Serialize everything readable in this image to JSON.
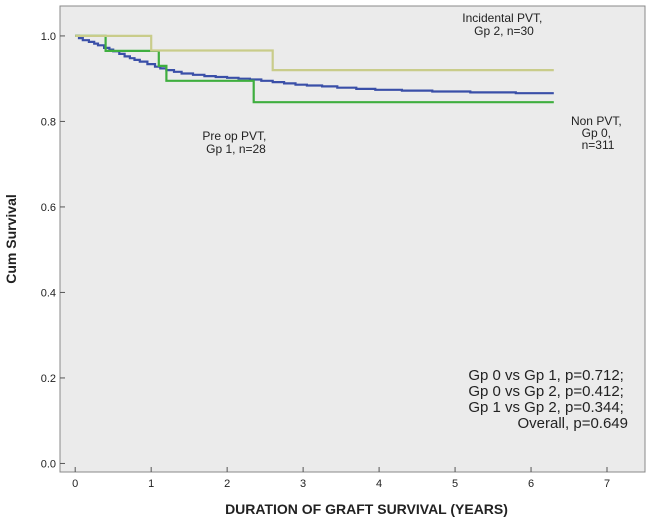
{
  "chart_data": {
    "type": "line",
    "title": "",
    "xlabel": "DURATION OF GRAFT SURVIVAL (YEARS)",
    "ylabel": "Cum Survival",
    "xlim": [
      -0.2,
      7.5
    ],
    "ylim": [
      -0.02,
      1.07
    ],
    "xticks": [
      0,
      1,
      2,
      3,
      4,
      5,
      6,
      7
    ],
    "yticks": [
      0.0,
      0.2,
      0.4,
      0.6,
      0.8,
      1.0
    ],
    "ytick_labels": [
      "0.0",
      "0.2",
      "0.4",
      "0.6",
      "0.8",
      "1.0"
    ],
    "grid": false,
    "series": [
      {
        "name": "Gp 0",
        "color": "#3a4fa8",
        "steps": [
          [
            0,
            1.0
          ],
          [
            0.05,
            0.995
          ],
          [
            0.1,
            0.99
          ],
          [
            0.18,
            0.986
          ],
          [
            0.25,
            0.982
          ],
          [
            0.3,
            0.978
          ],
          [
            0.38,
            0.972
          ],
          [
            0.45,
            0.968
          ],
          [
            0.5,
            0.964
          ],
          [
            0.58,
            0.958
          ],
          [
            0.65,
            0.952
          ],
          [
            0.72,
            0.948
          ],
          [
            0.78,
            0.944
          ],
          [
            0.85,
            0.94
          ],
          [
            0.95,
            0.934
          ],
          [
            1.05,
            0.928
          ],
          [
            1.12,
            0.924
          ],
          [
            1.2,
            0.92
          ],
          [
            1.3,
            0.916
          ],
          [
            1.4,
            0.912
          ],
          [
            1.55,
            0.909
          ],
          [
            1.7,
            0.906
          ],
          [
            1.85,
            0.904
          ],
          [
            2.0,
            0.902
          ],
          [
            2.15,
            0.9
          ],
          [
            2.3,
            0.898
          ],
          [
            2.45,
            0.895
          ],
          [
            2.6,
            0.892
          ],
          [
            2.75,
            0.889
          ],
          [
            2.9,
            0.886
          ],
          [
            3.05,
            0.884
          ],
          [
            3.25,
            0.882
          ],
          [
            3.45,
            0.879
          ],
          [
            3.7,
            0.876
          ],
          [
            3.95,
            0.874
          ],
          [
            4.3,
            0.872
          ],
          [
            4.7,
            0.87
          ],
          [
            5.2,
            0.868
          ],
          [
            5.8,
            0.866
          ]
        ],
        "x_end": 6.3
      },
      {
        "name": "Gp 1",
        "color": "#3fae3f",
        "steps": [
          [
            0,
            1.0
          ],
          [
            0.4,
            0.965
          ],
          [
            1.1,
            0.93
          ],
          [
            1.2,
            0.895
          ],
          [
            2.35,
            0.845
          ]
        ],
        "x_end": 6.3
      },
      {
        "name": "Gp 2",
        "color": "#c9cc8a",
        "steps": [
          [
            0,
            1.0
          ],
          [
            1.0,
            0.966
          ],
          [
            2.6,
            0.92
          ]
        ],
        "x_end": 6.3
      }
    ],
    "annotations": {
      "gp2": [
        "Incidental PVT,",
        "Gp 2, n=30"
      ],
      "gp1": [
        "Pre op PVT,",
        "Gp 1, n=28"
      ],
      "gp0": [
        "Non PVT,",
        "Gp 0,",
        "n=311"
      ]
    },
    "stats": [
      "Gp 0 vs Gp 1, p=0.712;",
      "Gp 0 vs Gp 2, p=0.412;",
      "Gp 1 vs Gp 2, p=0.344;",
      "Overall, p=0.649"
    ]
  }
}
